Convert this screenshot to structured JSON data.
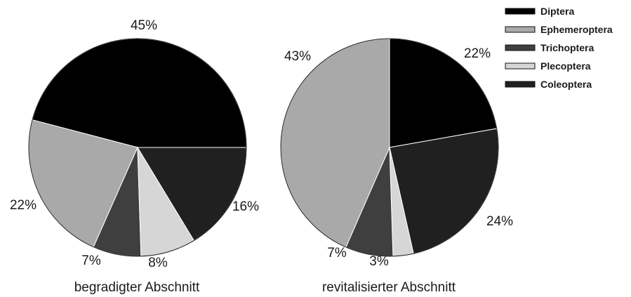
{
  "chart_data": [
    {
      "type": "pie",
      "caption": "begradigter Abschnitt",
      "slices": [
        {
          "category": "Diptera",
          "value": 45,
          "label": "45%"
        },
        {
          "category": "Ephemeroptera",
          "value": 22,
          "label": "22%"
        },
        {
          "category": "Trichoptera",
          "value": 7,
          "label": "7%"
        },
        {
          "category": "Plecoptera",
          "value": 8,
          "label": "8%"
        },
        {
          "category": "Coleoptera",
          "value": 16,
          "label": "16%"
        }
      ]
    },
    {
      "type": "pie",
      "caption": "revitalisierter Abschnitt",
      "slices": [
        {
          "category": "Diptera",
          "value": 22,
          "label": "22%"
        },
        {
          "category": "Ephemeroptera",
          "value": 43,
          "label": "43%"
        },
        {
          "category": "Trichoptera",
          "value": 7,
          "label": "7%"
        },
        {
          "category": "Plecoptera",
          "value": 3,
          "label": "3%"
        },
        {
          "category": "Coleoptera",
          "value": 24,
          "label": "24%"
        }
      ]
    }
  ],
  "legend": {
    "placement": "top-right",
    "items": [
      {
        "label": "Diptera",
        "color": "#000000"
      },
      {
        "label": "Ephemeroptera",
        "color": "#a9a9a9"
      },
      {
        "label": "Trichoptera",
        "color": "#3f3f3f"
      },
      {
        "label": "Plecoptera",
        "color": "#d6d6d6"
      },
      {
        "label": "Coleoptera",
        "color": "#202020"
      }
    ]
  }
}
